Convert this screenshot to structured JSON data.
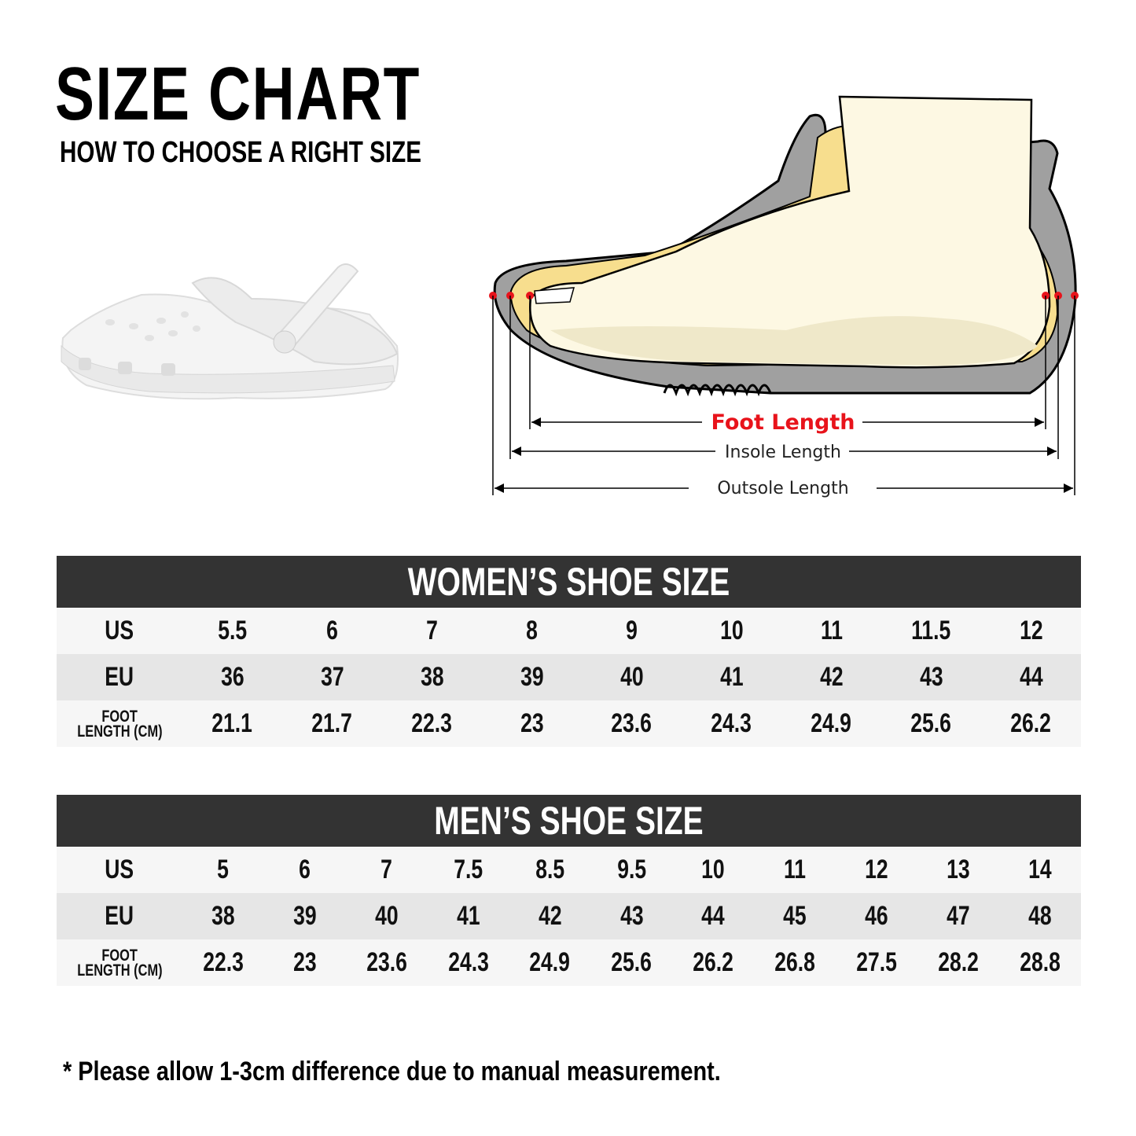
{
  "header": {
    "title": "SIZE CHART",
    "subtitle": "HOW TO CHOOSE A RIGHT SIZE"
  },
  "diagram": {
    "foot_length": "Foot Length",
    "insole_length": "Insole Length",
    "outsole_length": "Outsole Length",
    "colors": {
      "foot_length": "#e8131b",
      "sole": "#a0a0a0",
      "insole": "#f7de8e",
      "foot": "#fdf8e3"
    }
  },
  "women": {
    "title": "WOMEN’S SHOE SIZE",
    "labels": {
      "us": "US",
      "eu": "EU",
      "foot_1": "FOOT",
      "foot_2": "LENGTH (CM)"
    },
    "us": [
      "5.5",
      "6",
      "7",
      "8",
      "9",
      "10",
      "11",
      "11.5",
      "12"
    ],
    "eu": [
      "36",
      "37",
      "38",
      "39",
      "40",
      "41",
      "42",
      "43",
      "44"
    ],
    "foot": [
      "21.1",
      "21.7",
      "22.3",
      "23",
      "23.6",
      "24.3",
      "24.9",
      "25.6",
      "26.2"
    ]
  },
  "men": {
    "title": "MEN’S SHOE SIZE",
    "labels": {
      "us": "US",
      "eu": "EU",
      "foot_1": "FOOT",
      "foot_2": "LENGTH (CM)"
    },
    "us": [
      "5",
      "6",
      "7",
      "7.5",
      "8.5",
      "9.5",
      "10",
      "11",
      "12",
      "13",
      "14"
    ],
    "eu": [
      "38",
      "39",
      "40",
      "41",
      "42",
      "43",
      "44",
      "45",
      "46",
      "47",
      "48"
    ],
    "foot": [
      "22.3",
      "23",
      "23.6",
      "24.3",
      "24.9",
      "25.6",
      "26.2",
      "26.8",
      "27.5",
      "28.2",
      "28.8"
    ]
  },
  "note": "* Please allow 1-3cm difference due to manual measurement."
}
